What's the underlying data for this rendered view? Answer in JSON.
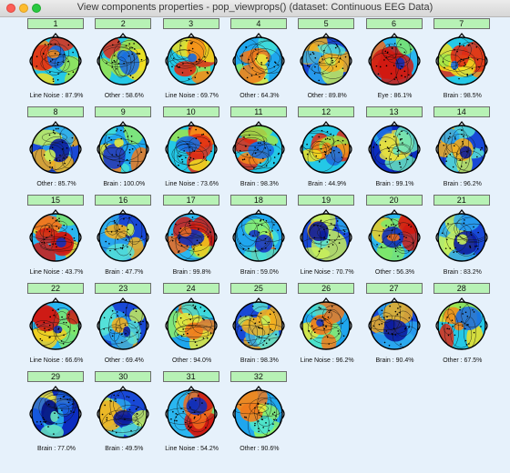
{
  "window": {
    "title": "View components properties - pop_viewprops() (dataset: Continuous EEG Data)"
  },
  "components": [
    {
      "number": "1",
      "label": "Line Noise : 87.9%",
      "palette": "warm"
    },
    {
      "number": "2",
      "label": "Other : 58.6%",
      "palette": "warm"
    },
    {
      "number": "3",
      "label": "Line Noise : 69.7%",
      "palette": "warm"
    },
    {
      "number": "4",
      "label": "Other : 64.3%",
      "palette": "cyan"
    },
    {
      "number": "5",
      "label": "Other : 89.8%",
      "palette": "cool"
    },
    {
      "number": "6",
      "label": "Eye : 86.1%",
      "palette": "mixed"
    },
    {
      "number": "7",
      "label": "Brain : 98.5%",
      "palette": "warm"
    },
    {
      "number": "8",
      "label": "Other : 85.7%",
      "palette": "cool"
    },
    {
      "number": "9",
      "label": "Brain : 100.0%",
      "palette": "cyan"
    },
    {
      "number": "10",
      "label": "Line Noise : 73.6%",
      "palette": "warm"
    },
    {
      "number": "11",
      "label": "Brain : 98.3%",
      "palette": "warm"
    },
    {
      "number": "12",
      "label": "Brain : 44.9%",
      "palette": "warm"
    },
    {
      "number": "13",
      "label": "Brain : 99.1%",
      "palette": "deep"
    },
    {
      "number": "14",
      "label": "Brain : 96.2%",
      "palette": "cool"
    },
    {
      "number": "15",
      "label": "Line Noise : 43.7%",
      "palette": "mixed"
    },
    {
      "number": "16",
      "label": "Brain : 47.7%",
      "palette": "cool"
    },
    {
      "number": "17",
      "label": "Brain : 99.8%",
      "palette": "mixed"
    },
    {
      "number": "18",
      "label": "Brain : 59.0%",
      "palette": "cyan"
    },
    {
      "number": "19",
      "label": "Line Noise : 70.7%",
      "palette": "cool"
    },
    {
      "number": "20",
      "label": "Other : 56.3%",
      "palette": "mixed"
    },
    {
      "number": "21",
      "label": "Brain : 83.2%",
      "palette": "cool"
    },
    {
      "number": "22",
      "label": "Line Noise : 66.6%",
      "palette": "mixed"
    },
    {
      "number": "23",
      "label": "Other : 69.4%",
      "palette": "cool"
    },
    {
      "number": "24",
      "label": "Other : 94.0%",
      "palette": "cyan"
    },
    {
      "number": "25",
      "label": "Brain : 98.3%",
      "palette": "cool"
    },
    {
      "number": "26",
      "label": "Line Noise : 96.2%",
      "palette": "cyan"
    },
    {
      "number": "27",
      "label": "Brain : 90.4%",
      "palette": "cool"
    },
    {
      "number": "28",
      "label": "Other : 67.5%",
      "palette": "warm"
    },
    {
      "number": "29",
      "label": "Brain : 77.0%",
      "palette": "deep"
    },
    {
      "number": "30",
      "label": "Brain : 49.5%",
      "palette": "cool"
    },
    {
      "number": "31",
      "label": "Line Noise : 54.2%",
      "palette": "mixed"
    },
    {
      "number": "32",
      "label": "Other : 90.6%",
      "palette": "cyan"
    }
  ],
  "colors": {
    "button_fill": "#b7f2b5",
    "background": "#e6f1fb"
  }
}
